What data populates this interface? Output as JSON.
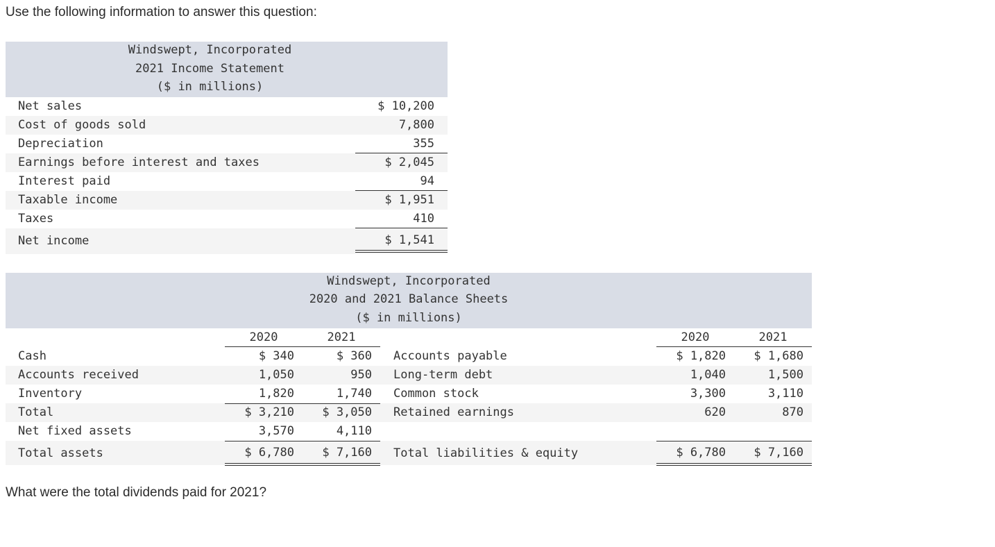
{
  "intro": "Use the following information to answer this question:",
  "question": "What were the total dividends paid for 2021?",
  "income_statement": {
    "title_lines": [
      "Windswept, Incorporated",
      "2021 Income Statement",
      "($ in millions)"
    ],
    "rows": [
      {
        "label": "Net sales",
        "value": "$ 10,200"
      },
      {
        "label": "Cost of goods sold",
        "value": "7,800"
      },
      {
        "label": "Depreciation",
        "value": "355"
      },
      {
        "label": "Earnings before interest and taxes",
        "value": "$ 2,045"
      },
      {
        "label": "Interest paid",
        "value": "94"
      },
      {
        "label": "Taxable income",
        "value": "$ 1,951"
      },
      {
        "label": "Taxes",
        "value": "410"
      },
      {
        "label": "Net income",
        "value": "$ 1,541"
      }
    ]
  },
  "balance_sheet": {
    "title_lines": [
      "Windswept, Incorporated",
      "2020 and 2021 Balance Sheets",
      "($ in millions)"
    ],
    "years": [
      "2020",
      "2021"
    ],
    "assets": [
      {
        "label": "Cash",
        "y2020": "$ 340",
        "y2021": "$ 360"
      },
      {
        "label": "Accounts received",
        "y2020": "1,050",
        "y2021": "950"
      },
      {
        "label": "Inventory",
        "y2020": "1,820",
        "y2021": "1,740"
      },
      {
        "label": "Total",
        "y2020": "$ 3,210",
        "y2021": "$ 3,050"
      },
      {
        "label": "Net fixed assets",
        "y2020": "3,570",
        "y2021": "4,110"
      },
      {
        "label": "Total assets",
        "y2020": "$ 6,780",
        "y2021": "$ 7,160"
      }
    ],
    "liabilities": [
      {
        "label": "Accounts payable",
        "y2020": "$ 1,820",
        "y2021": "$ 1,680"
      },
      {
        "label": "Long-term debt",
        "y2020": "1,040",
        "y2021": "1,500"
      },
      {
        "label": "Common stock",
        "y2020": "3,300",
        "y2021": "3,110"
      },
      {
        "label": "Retained earnings",
        "y2020": "620",
        "y2021": "870"
      },
      {
        "label": "",
        "y2020": "",
        "y2021": ""
      },
      {
        "label": "Total liabilities & equity",
        "y2020": "$ 6,780",
        "y2021": "$ 7,160"
      }
    ]
  }
}
